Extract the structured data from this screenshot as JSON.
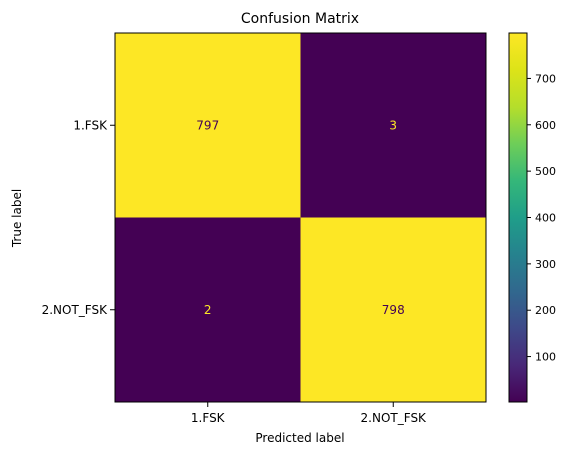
{
  "chart_data": {
    "type": "heatmap",
    "title": "Confusion Matrix",
    "xlabel": "Predicted label",
    "ylabel": "True label",
    "x_categories": [
      "1.FSK",
      "2.NOT_FSK"
    ],
    "y_categories": [
      "1.FSK",
      "2.NOT_FSK"
    ],
    "values": [
      [
        797,
        3
      ],
      [
        2,
        798
      ]
    ],
    "colorbar": {
      "colormap": "viridis",
      "min": 2,
      "max": 798,
      "ticks": [
        100,
        200,
        300,
        400,
        500,
        600,
        700
      ]
    },
    "grid": false,
    "legend": "colorbar-right",
    "colors": {
      "low": "#440154",
      "high": "#fde725",
      "text_on_dark": "#fde725",
      "text_on_light": "#440154"
    }
  }
}
